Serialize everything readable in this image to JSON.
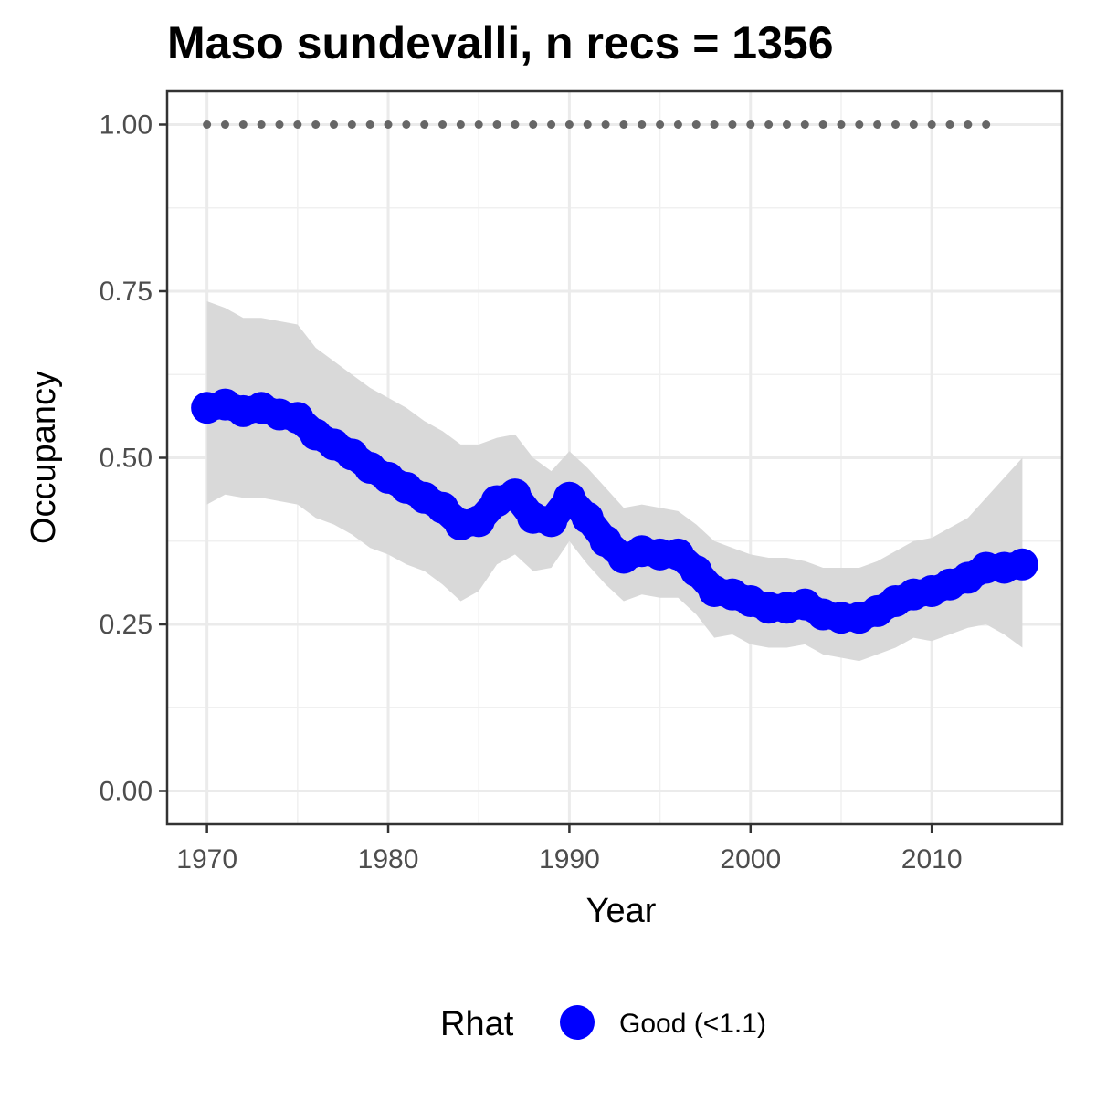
{
  "chart_data": {
    "type": "line",
    "title": "Maso sundevalli, n recs = 1356",
    "xlabel": "Year",
    "ylabel": "Occupancy",
    "xlim": [
      1967.8,
      2017.2
    ],
    "ylim": [
      -0.05,
      1.05
    ],
    "x_ticks": [
      1970,
      1980,
      1990,
      2000,
      2010
    ],
    "x_tick_labels": [
      "1970",
      "1980",
      "1990",
      "2000",
      "2010"
    ],
    "y_ticks": [
      0,
      0.25,
      0.5,
      0.75,
      1.0
    ],
    "y_tick_labels": [
      "0.00",
      "0.25",
      "0.50",
      "0.75",
      "1.00"
    ],
    "grid": true,
    "legend": {
      "position": "bottom",
      "title": "Rhat",
      "entries": [
        {
          "label": "Good (<1.1)",
          "color": "#0000ff"
        }
      ]
    },
    "series": [
      {
        "name": "Good (<1.1)",
        "kind": "points",
        "color": "#0000ff",
        "x": [
          1970,
          1971,
          1972,
          1973,
          1974,
          1975,
          1976,
          1977,
          1978,
          1979,
          1980,
          1981,
          1982,
          1983,
          1984,
          1985,
          1986,
          1987,
          1988,
          1989,
          1990,
          1991,
          1992,
          1993,
          1994,
          1995,
          1996,
          1997,
          1998,
          1999,
          2000,
          2001,
          2002,
          2003,
          2004,
          2005,
          2006,
          2007,
          2008,
          2009,
          2010,
          2011,
          2012,
          2013,
          2014,
          2015
        ],
        "y": [
          0.575,
          0.58,
          0.57,
          0.575,
          0.565,
          0.56,
          0.535,
          0.52,
          0.505,
          0.485,
          0.47,
          0.455,
          0.44,
          0.425,
          0.4,
          0.405,
          0.435,
          0.445,
          0.41,
          0.405,
          0.44,
          0.41,
          0.375,
          0.35,
          0.36,
          0.355,
          0.355,
          0.33,
          0.3,
          0.295,
          0.285,
          0.275,
          0.275,
          0.28,
          0.265,
          0.26,
          0.26,
          0.27,
          0.285,
          0.295,
          0.3,
          0.31,
          0.32,
          0.335,
          0.335,
          0.34
        ]
      }
    ],
    "ribbon": {
      "color": "#d9d9d9",
      "x": [
        1970,
        1971,
        1972,
        1973,
        1974,
        1975,
        1976,
        1977,
        1978,
        1979,
        1980,
        1981,
        1982,
        1983,
        1984,
        1985,
        1986,
        1987,
        1988,
        1989,
        1990,
        1991,
        1992,
        1993,
        1994,
        1995,
        1996,
        1997,
        1998,
        1999,
        2000,
        2001,
        2002,
        2003,
        2004,
        2005,
        2006,
        2007,
        2008,
        2009,
        2010,
        2011,
        2012,
        2013,
        2014,
        2015
      ],
      "lower": [
        0.43,
        0.445,
        0.44,
        0.44,
        0.435,
        0.43,
        0.41,
        0.4,
        0.385,
        0.365,
        0.355,
        0.34,
        0.33,
        0.31,
        0.285,
        0.3,
        0.34,
        0.355,
        0.33,
        0.335,
        0.375,
        0.34,
        0.31,
        0.285,
        0.295,
        0.29,
        0.29,
        0.265,
        0.23,
        0.235,
        0.22,
        0.215,
        0.215,
        0.22,
        0.205,
        0.2,
        0.195,
        0.205,
        0.215,
        0.23,
        0.225,
        0.235,
        0.245,
        0.25,
        0.235,
        0.215
      ],
      "upper": [
        0.735,
        0.725,
        0.71,
        0.71,
        0.705,
        0.7,
        0.665,
        0.645,
        0.625,
        0.605,
        0.59,
        0.575,
        0.555,
        0.54,
        0.52,
        0.52,
        0.53,
        0.535,
        0.5,
        0.48,
        0.51,
        0.485,
        0.455,
        0.425,
        0.43,
        0.425,
        0.42,
        0.4,
        0.375,
        0.365,
        0.355,
        0.35,
        0.35,
        0.345,
        0.335,
        0.335,
        0.335,
        0.345,
        0.36,
        0.375,
        0.38,
        0.395,
        0.41,
        0.44,
        0.47,
        0.5
      ]
    },
    "reference": {
      "kind": "dotted-line",
      "color": "#666666",
      "x": [
        1970,
        1971,
        1972,
        1973,
        1974,
        1975,
        1976,
        1977,
        1978,
        1979,
        1980,
        1981,
        1982,
        1983,
        1984,
        1985,
        1986,
        1987,
        1988,
        1989,
        1990,
        1991,
        1992,
        1993,
        1994,
        1995,
        1996,
        1997,
        1998,
        1999,
        2000,
        2001,
        2002,
        2003,
        2004,
        2005,
        2006,
        2007,
        2008,
        2009,
        2010,
        2011,
        2012,
        2013
      ],
      "y": [
        1,
        1,
        1,
        1,
        1,
        1,
        1,
        1,
        1,
        1,
        1,
        1,
        1,
        1,
        1,
        1,
        1,
        1,
        1,
        1,
        1,
        1,
        1,
        1,
        1,
        1,
        1,
        1,
        1,
        1,
        1,
        1,
        1,
        1,
        1,
        1,
        1,
        1,
        1,
        1,
        1,
        1,
        1,
        1
      ]
    }
  }
}
